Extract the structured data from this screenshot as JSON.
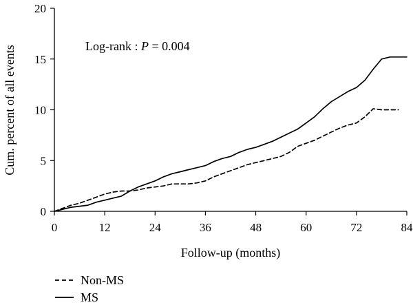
{
  "chart_data": {
    "type": "line",
    "title": "",
    "xlabel": "Follow-up (months)",
    "ylabel": "Cum. percent of all events",
    "xlim": [
      0,
      84
    ],
    "ylim": [
      0,
      20
    ],
    "xticks": [
      0,
      12,
      24,
      36,
      48,
      60,
      72,
      84
    ],
    "yticks": [
      0,
      5,
      10,
      15,
      20
    ],
    "grid": false,
    "legend_position": "bottom-left",
    "annotation": {
      "prefix": "Log-rank : ",
      "stat": "P",
      "suffix": " = 0.004"
    },
    "series": [
      {
        "name": "Non-MS",
        "style": "dashed",
        "color": "#000000",
        "x": [
          0,
          2,
          4,
          6,
          8,
          10,
          12,
          14,
          16,
          18,
          20,
          22,
          24,
          26,
          28,
          30,
          32,
          34,
          36,
          38,
          40,
          42,
          44,
          46,
          48,
          50,
          52,
          54,
          56,
          58,
          60,
          62,
          64,
          66,
          68,
          70,
          72,
          74,
          76,
          78,
          80,
          82
        ],
        "y": [
          0,
          0.3,
          0.6,
          0.8,
          1.1,
          1.4,
          1.7,
          1.9,
          2.0,
          2.0,
          2.1,
          2.3,
          2.4,
          2.5,
          2.7,
          2.7,
          2.7,
          2.8,
          3.0,
          3.4,
          3.7,
          4.0,
          4.3,
          4.6,
          4.8,
          5.0,
          5.2,
          5.4,
          5.8,
          6.4,
          6.7,
          7.0,
          7.4,
          7.8,
          8.2,
          8.5,
          8.7,
          9.3,
          10.1,
          10.0,
          10.0,
          10.0
        ]
      },
      {
        "name": "MS",
        "style": "solid",
        "color": "#000000",
        "x": [
          0,
          2,
          4,
          6,
          8,
          10,
          12,
          14,
          16,
          18,
          20,
          22,
          24,
          26,
          28,
          30,
          32,
          34,
          36,
          38,
          40,
          42,
          44,
          46,
          48,
          50,
          52,
          54,
          56,
          58,
          60,
          62,
          64,
          66,
          68,
          70,
          72,
          74,
          76,
          78,
          80,
          82,
          84
        ],
        "y": [
          0,
          0.2,
          0.4,
          0.5,
          0.6,
          0.9,
          1.1,
          1.3,
          1.5,
          2.0,
          2.4,
          2.7,
          3.0,
          3.4,
          3.7,
          3.9,
          4.1,
          4.3,
          4.5,
          4.9,
          5.2,
          5.4,
          5.8,
          6.1,
          6.3,
          6.6,
          6.9,
          7.3,
          7.7,
          8.1,
          8.7,
          9.3,
          10.1,
          10.8,
          11.3,
          11.8,
          12.2,
          12.9,
          14.0,
          15.0,
          15.2,
          15.2,
          15.2
        ]
      }
    ]
  }
}
